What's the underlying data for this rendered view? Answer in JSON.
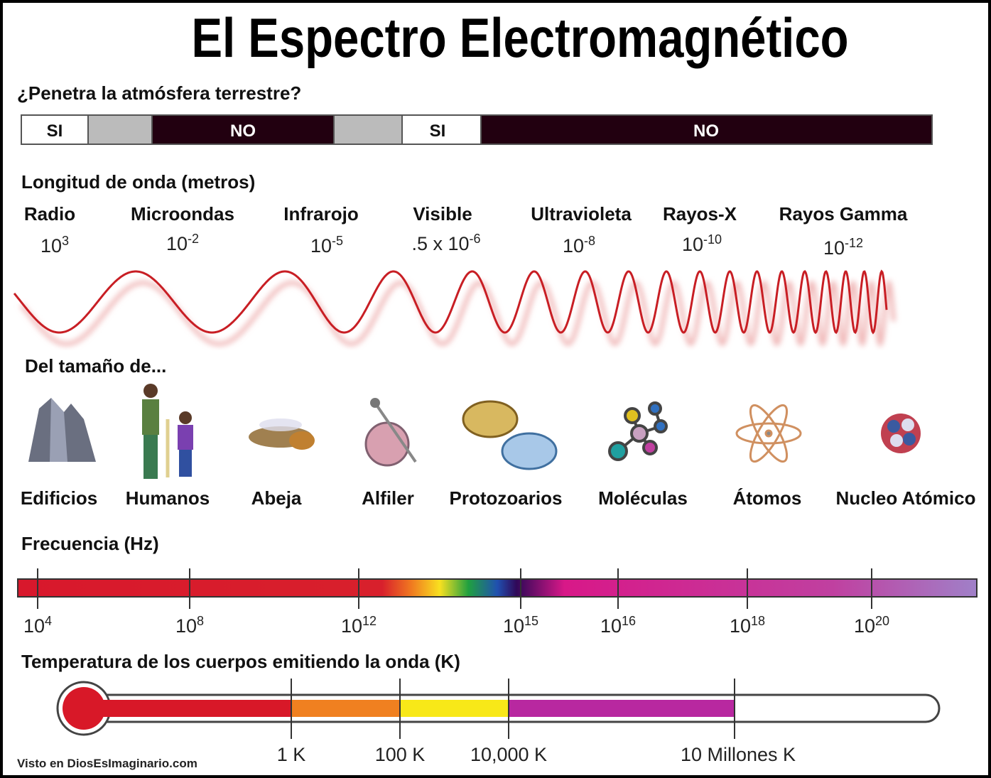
{
  "title": "El Espectro Electromagnético",
  "atmosphere": {
    "label": "¿Penetra la atmósfera terrestre?",
    "segments": [
      "SI",
      "NO",
      "SI",
      "NO"
    ]
  },
  "wavelength": {
    "label": "Longitud de onda (metros)",
    "bands": [
      {
        "name": "Radio",
        "base": "10",
        "exp": "3"
      },
      {
        "name": "Microondas",
        "base": "10",
        "exp": "-2"
      },
      {
        "name": "Infrarojo",
        "base": "10",
        "exp": "-5"
      },
      {
        "name": "Visible",
        "base": ".5 x 10",
        "exp": "-6"
      },
      {
        "name": "Ultravioleta",
        "base": "10",
        "exp": "-8"
      },
      {
        "name": "Rayos-X",
        "base": "10",
        "exp": "-10"
      },
      {
        "name": "Rayos Gamma",
        "base": "10",
        "exp": "-12"
      }
    ]
  },
  "sizes": {
    "label": "Del tamaño de...",
    "items": [
      "Edificios",
      "Humanos",
      "Abeja",
      "Alfiler",
      "Protozoarios",
      "Moléculas",
      "Átomos",
      "Nucleo Atómico"
    ]
  },
  "frequency": {
    "label": "Frecuencia (Hz)",
    "ticks": [
      {
        "base": "10",
        "exp": "4"
      },
      {
        "base": "10",
        "exp": "8"
      },
      {
        "base": "10",
        "exp": "12"
      },
      {
        "base": "10",
        "exp": "15"
      },
      {
        "base": "10",
        "exp": "16"
      },
      {
        "base": "10",
        "exp": "18"
      },
      {
        "base": "10",
        "exp": "20"
      }
    ]
  },
  "temperature": {
    "label": "Temperatura de los cuerpos emitiendo la onda (K)",
    "ticks": [
      "1 K",
      "100 K",
      "10,000 K",
      "10 Millones K"
    ]
  },
  "credit": "Visto en DiosEsImaginario.com"
}
